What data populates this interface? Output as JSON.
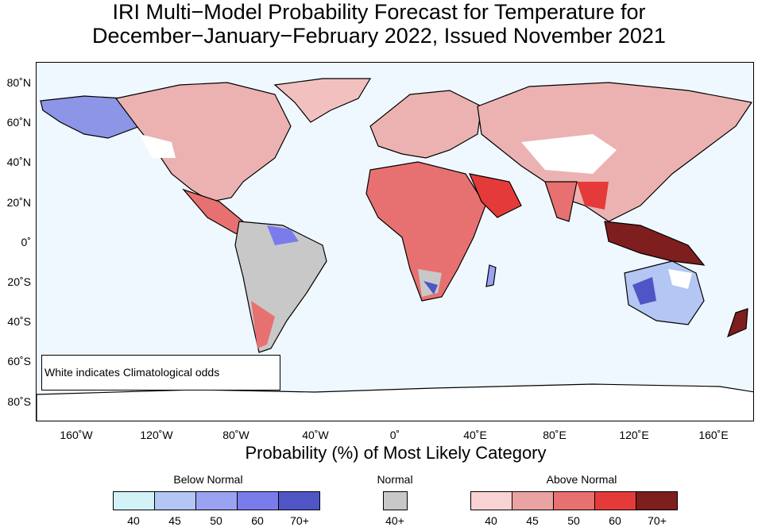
{
  "title": {
    "line1": "IRI Multi−Model Probability Forecast for Temperature for",
    "line2": "December−January−February 2022, Issued November 2021"
  },
  "map": {
    "lat_labels": [
      "80˚N",
      "60˚N",
      "40˚N",
      "20˚N",
      "0˚",
      "20˚S",
      "40˚S",
      "60˚S",
      "80˚S"
    ],
    "lon_labels": [
      "160˚W",
      "120˚W",
      "80˚W",
      "40˚W",
      "0˚",
      "40˚E",
      "80˚E",
      "120˚E",
      "160˚E"
    ],
    "note": "White indicates Climatological odds",
    "ocean_color": "#f0f8ff"
  },
  "axis_title": "Probability (%) of Most Likely Category",
  "legend": {
    "below": {
      "title": "Below Normal",
      "labels": [
        "40",
        "45",
        "50",
        "60",
        "70+"
      ],
      "colors": [
        "#d2f2f7",
        "#b3c6f4",
        "#9aa3f2",
        "#7b7cec",
        "#4f55c4"
      ]
    },
    "normal": {
      "title": "Normal",
      "labels": [
        "40+"
      ],
      "colors": [
        "#c8c8c8"
      ]
    },
    "above": {
      "title": "Above Normal",
      "labels": [
        "40",
        "45",
        "50",
        "60",
        "70+"
      ],
      "colors": [
        "#f9d3d3",
        "#eaa3a3",
        "#e77171",
        "#e53a3a",
        "#7e1e1e"
      ]
    }
  }
}
